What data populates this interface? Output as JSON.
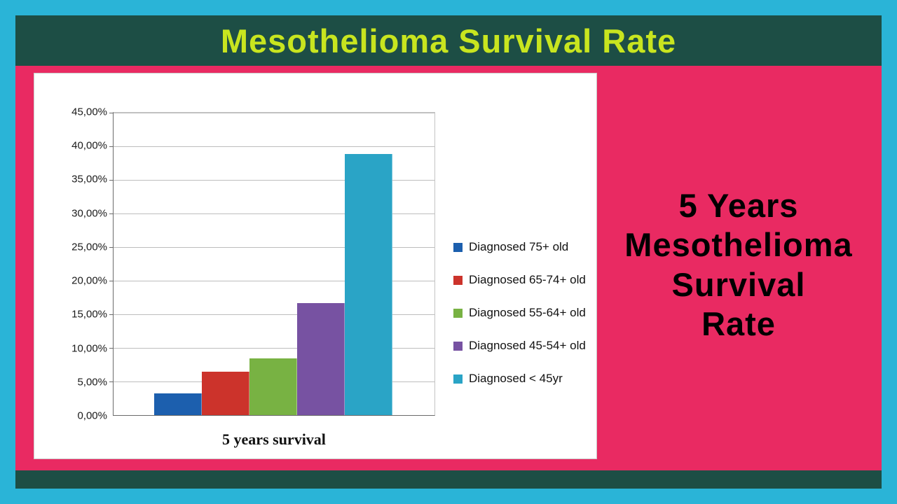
{
  "page": {
    "top_title": "Mesothelioma Survival Rate",
    "side_title_lines": [
      "5 Years",
      "Mesothelioma",
      "Survival",
      "Rate"
    ]
  },
  "colors": {
    "frame_cyan": "#2ab4d7",
    "band_teal": "#1d4e45",
    "body_pink": "#e92a62",
    "title_yellow_green": "#c8e51f",
    "side_title_black": "#000000"
  },
  "chart_data": {
    "type": "bar",
    "title": "",
    "categories": [
      "Diagnosed 75+ old",
      "Diagnosed 65-74+ old",
      "Diagnosed 55-64+ old",
      "Diagnosed 45-54+ old",
      "Diagnosed < 45yr"
    ],
    "values": [
      3.2,
      6.5,
      8.4,
      16.7,
      38.9
    ],
    "bar_colors": [
      "#1c5fae",
      "#cc332b",
      "#78b243",
      "#7752a2",
      "#2aa4c6"
    ],
    "xlabel": "5 years survival",
    "ylabel": "",
    "ylim": [
      0,
      45
    ],
    "ytick_step": 5,
    "ytick_labels": [
      "0,00%",
      "5,00%",
      "10,00%",
      "15,00%",
      "20,00%",
      "25,00%",
      "30,00%",
      "35,00%",
      "40,00%",
      "45,00%"
    ],
    "grid": true,
    "legend_position": "right",
    "legend": [
      {
        "label": "Diagnosed 75+ old",
        "color": "#1c5fae"
      },
      {
        "label": "Diagnosed 65-74+ old",
        "color": "#cc332b"
      },
      {
        "label": "Diagnosed 55-64+ old",
        "color": "#78b243"
      },
      {
        "label": "Diagnosed 45-54+ old",
        "color": "#7752a2"
      },
      {
        "label": "Diagnosed < 45yr",
        "color": "#2aa4c6"
      }
    ]
  }
}
